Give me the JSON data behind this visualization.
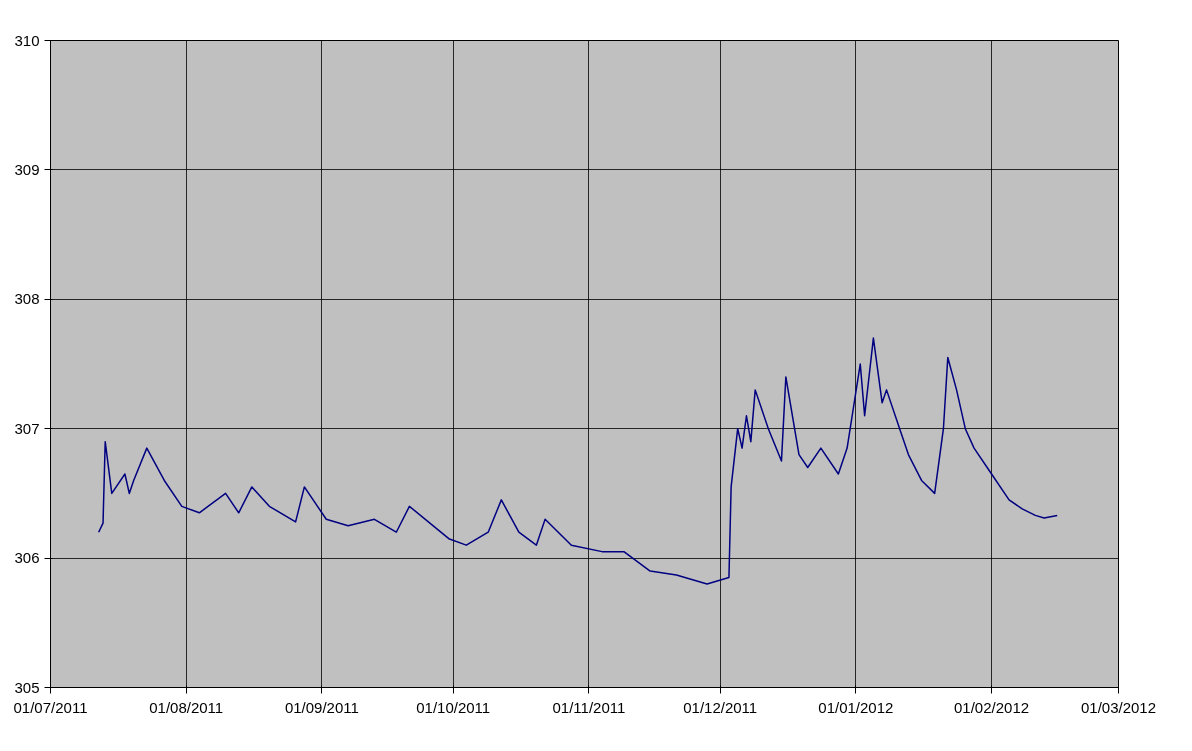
{
  "chart_data": {
    "type": "line",
    "x": [
      "2011-07-12",
      "2011-07-13",
      "2011-07-13T12:00",
      "2011-07-15",
      "2011-07-18",
      "2011-07-19",
      "2011-07-20",
      "2011-07-23",
      "2011-07-27",
      "2011-07-31",
      "2011-08-04",
      "2011-08-10",
      "2011-08-13",
      "2011-08-16",
      "2011-08-20",
      "2011-08-26",
      "2011-08-28",
      "2011-09-02",
      "2011-09-07",
      "2011-09-13",
      "2011-09-18",
      "2011-09-21",
      "2011-09-30",
      "2011-10-04",
      "2011-10-09",
      "2011-10-12",
      "2011-10-16",
      "2011-10-20",
      "2011-10-22",
      "2011-10-28",
      "2011-11-04",
      "2011-11-09",
      "2011-11-15",
      "2011-11-21",
      "2011-11-28",
      "2011-12-03",
      "2011-12-03T12:00",
      "2011-12-05",
      "2011-12-06",
      "2011-12-07",
      "2011-12-08",
      "2011-12-09",
      "2011-12-12",
      "2011-12-15",
      "2011-12-16",
      "2011-12-19",
      "2011-12-21",
      "2011-12-24",
      "2011-12-28",
      "2011-12-30",
      "2012-01-02",
      "2012-01-03",
      "2012-01-05",
      "2012-01-07",
      "2012-01-08",
      "2012-01-11",
      "2012-01-13",
      "2012-01-16",
      "2012-01-19",
      "2012-01-21",
      "2012-01-22",
      "2012-01-24",
      "2012-01-26",
      "2012-01-28",
      "2012-02-01",
      "2012-02-05",
      "2012-02-08",
      "2012-02-11",
      "2012-02-13",
      "2012-02-16"
    ],
    "series": [
      {
        "color": "#000080",
        "values": [
          306.2,
          306.27,
          306.9,
          306.5,
          306.65,
          306.5,
          306.6,
          306.85,
          306.6,
          306.4,
          306.35,
          306.5,
          306.35,
          306.55,
          306.4,
          306.28,
          306.55,
          306.3,
          306.25,
          306.3,
          306.2,
          306.4,
          306.15,
          306.1,
          306.2,
          306.45,
          306.2,
          306.1,
          306.3,
          306.1,
          306.05,
          306.05,
          305.9,
          305.87,
          305.8,
          305.85,
          306.55,
          307.0,
          306.85,
          307.1,
          306.9,
          307.3,
          307.0,
          306.75,
          307.4,
          306.8,
          306.7,
          306.85,
          306.65,
          306.85,
          307.5,
          307.1,
          307.7,
          307.2,
          307.3,
          307.0,
          306.8,
          306.6,
          306.5,
          307.0,
          307.55,
          307.3,
          307.0,
          306.85,
          306.65,
          306.45,
          306.38,
          306.33,
          306.31,
          306.33
        ]
      }
    ],
    "xlim": [
      "2011-07-01",
      "2012-03-01"
    ],
    "xticks": [
      {
        "value": "2011-07-01",
        "label": "01/07/2011"
      },
      {
        "value": "2011-08-01",
        "label": "01/08/2011"
      },
      {
        "value": "2011-09-01",
        "label": "01/09/2011"
      },
      {
        "value": "2011-10-01",
        "label": "01/10/2011"
      },
      {
        "value": "2011-11-01",
        "label": "01/11/2011"
      },
      {
        "value": "2011-12-01",
        "label": "01/12/2011"
      },
      {
        "value": "2012-01-01",
        "label": "01/01/2012"
      },
      {
        "value": "2012-02-01",
        "label": "01/02/2012"
      },
      {
        "value": "2012-03-01",
        "label": "01/03/2012"
      }
    ],
    "ylim": [
      305,
      310
    ],
    "yticks": [
      305,
      306,
      307,
      308,
      309,
      310
    ],
    "grid": true,
    "marker": "none",
    "line_style": "solid"
  }
}
